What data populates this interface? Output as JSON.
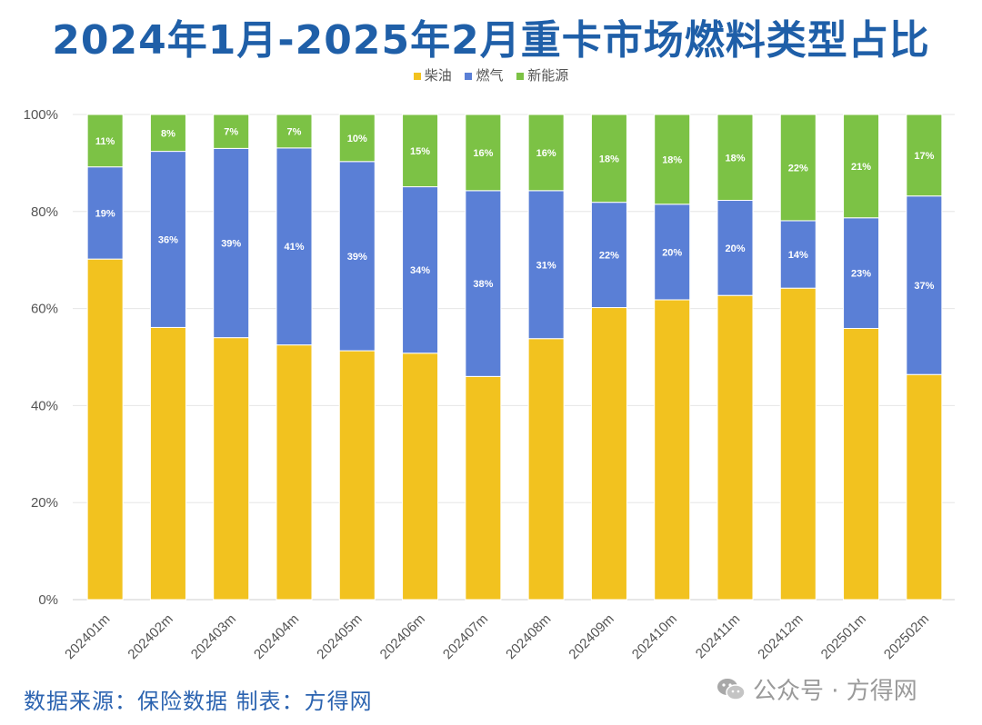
{
  "title": "2024年1月-2025年2月重卡市场燃料类型占比",
  "legend": [
    {
      "name": "柴油",
      "color": "#f2c21f"
    },
    {
      "name": "燃气",
      "color": "#5a7fd6"
    },
    {
      "name": "新能源",
      "color": "#7cc245"
    }
  ],
  "footer": {
    "source": "数据来源：保险数据 制表：方得网",
    "watermark_icon": "wechat-icon",
    "watermark": "公众号 · 方得网"
  },
  "chart_data": {
    "type": "bar",
    "stacked": true,
    "title": "2024年1月-2025年2月重卡市场燃料类型占比",
    "xlabel": "",
    "ylabel": "",
    "ylim": [
      0,
      100
    ],
    "yticks": [
      "0%",
      "20%",
      "40%",
      "60%",
      "80%",
      "100%"
    ],
    "grid": true,
    "legend_position": "top",
    "categories": [
      "202401m",
      "202402m",
      "202403m",
      "202404m",
      "202405m",
      "202406m",
      "202407m",
      "202408m",
      "202409m",
      "202410m",
      "202411m",
      "202412m",
      "202501m",
      "202502m"
    ],
    "series": [
      {
        "name": "柴油",
        "color": "#f2c21f",
        "values": [
          70.2,
          56.1,
          54.0,
          52.5,
          51.3,
          50.8,
          46.0,
          53.8,
          60.2,
          61.8,
          62.7,
          64.2,
          55.9,
          46.4
        ],
        "labels": [
          "",
          "",
          "",
          "",
          "",
          "",
          "",
          "",
          "",
          "",
          "",
          "",
          "",
          ""
        ]
      },
      {
        "name": "燃气",
        "color": "#5a7fd6",
        "values": [
          19.0,
          36.3,
          39.0,
          40.6,
          39.0,
          34.3,
          38.3,
          30.5,
          21.7,
          19.7,
          19.6,
          13.9,
          22.8,
          36.8
        ],
        "labels": [
          "19%",
          "36%",
          "39%",
          "41%",
          "39%",
          "34%",
          "38%",
          "31%",
          "22%",
          "20%",
          "20%",
          "14%",
          "23%",
          "37%"
        ]
      },
      {
        "name": "新能源",
        "color": "#7cc245",
        "values": [
          10.8,
          7.6,
          7.0,
          6.9,
          9.7,
          14.9,
          15.7,
          15.7,
          18.1,
          18.5,
          17.7,
          21.9,
          21.3,
          16.8
        ],
        "labels": [
          "11%",
          "8%",
          "7%",
          "7%",
          "10%",
          "15%",
          "16%",
          "16%",
          "18%",
          "18%",
          "18%",
          "22%",
          "21%",
          "17%"
        ]
      }
    ]
  }
}
